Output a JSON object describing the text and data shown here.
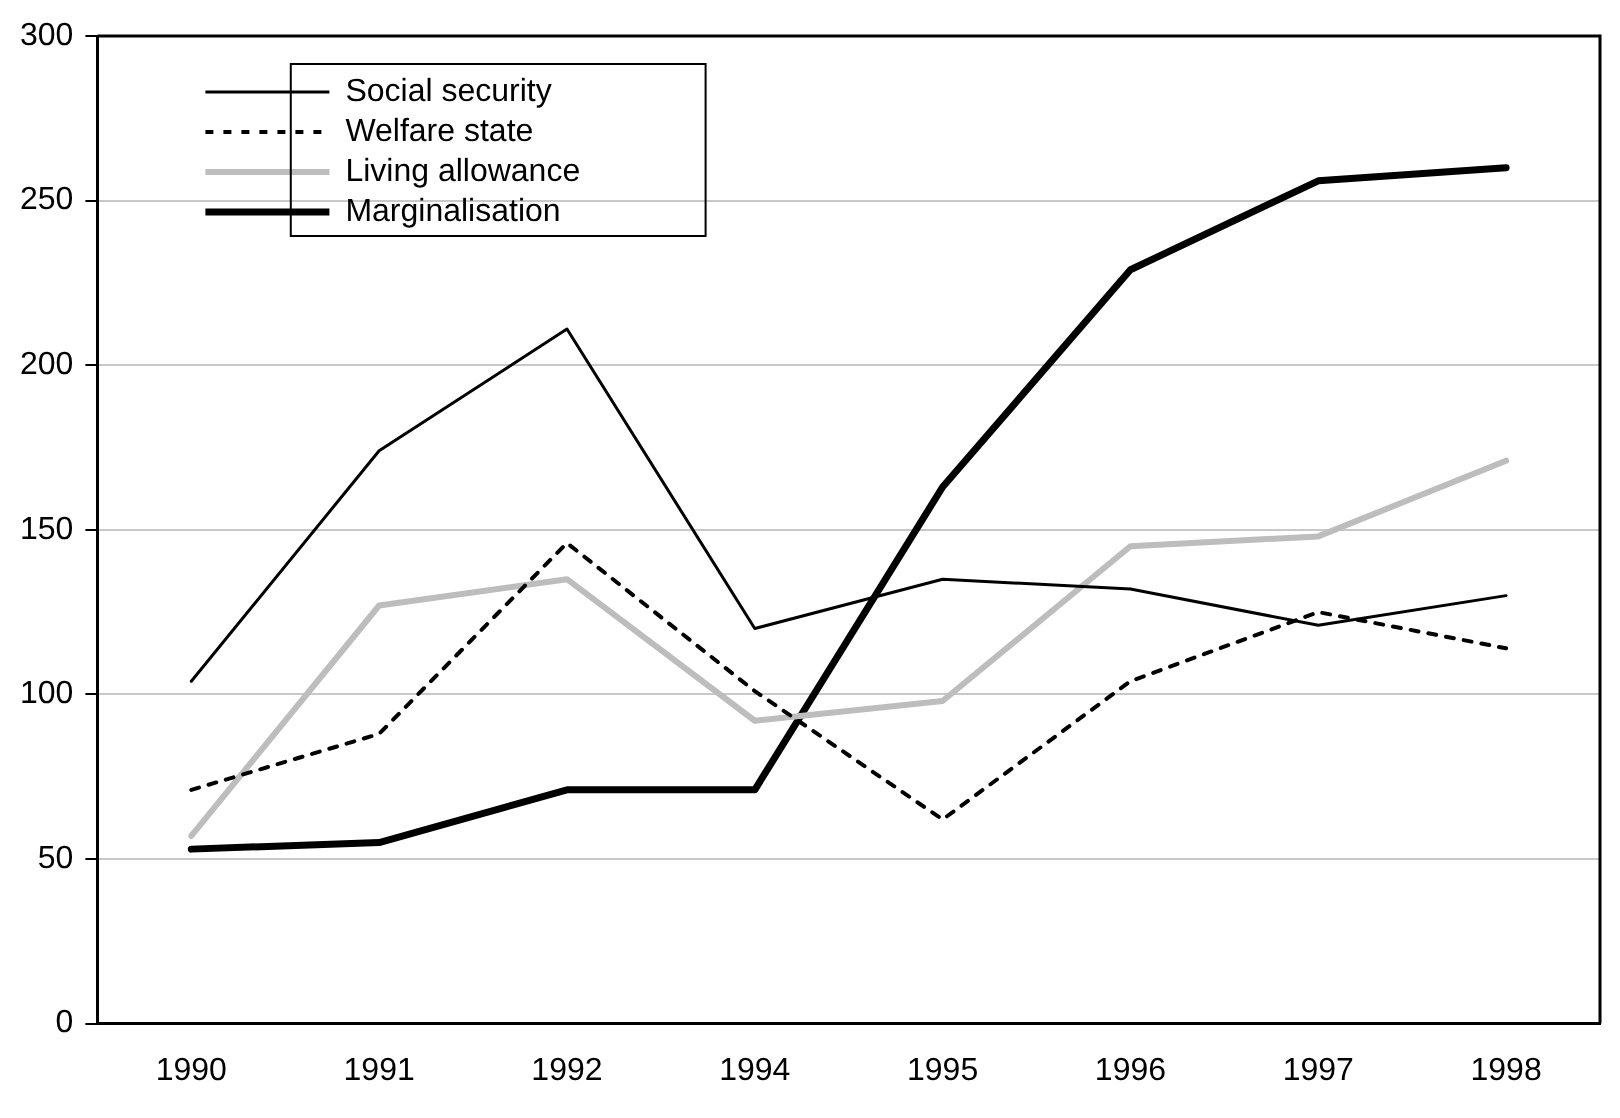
{
  "chart_data": {
    "type": "line",
    "categories": [
      "1990",
      "1991",
      "1992",
      "1994",
      "1995",
      "1996",
      "1997",
      "1998"
    ],
    "series": [
      {
        "name": "Social security",
        "color": "#000000",
        "line_style": "solid",
        "values": [
          104,
          174,
          211,
          120,
          135,
          132,
          121,
          130
        ]
      },
      {
        "name": "Welfare state",
        "color": "#000000",
        "line_style": "dotted",
        "values": [
          71,
          88,
          146,
          101,
          62,
          104,
          125,
          114
        ]
      },
      {
        "name": "Living allowance",
        "color": "#bdbdbd",
        "line_style": "solid",
        "values": [
          57,
          127,
          135,
          92,
          98,
          145,
          148,
          171
        ]
      },
      {
        "name": "Marginalisation",
        "color": "#000000",
        "line_style": "solid",
        "values": [
          53,
          55,
          71,
          71,
          163,
          229,
          256,
          260
        ]
      }
    ],
    "ylim": [
      0,
      300
    ],
    "yticks": [
      0,
      50,
      100,
      150,
      200,
      250,
      300
    ],
    "grid": "y",
    "legend": "top left",
    "marker": "none"
  }
}
